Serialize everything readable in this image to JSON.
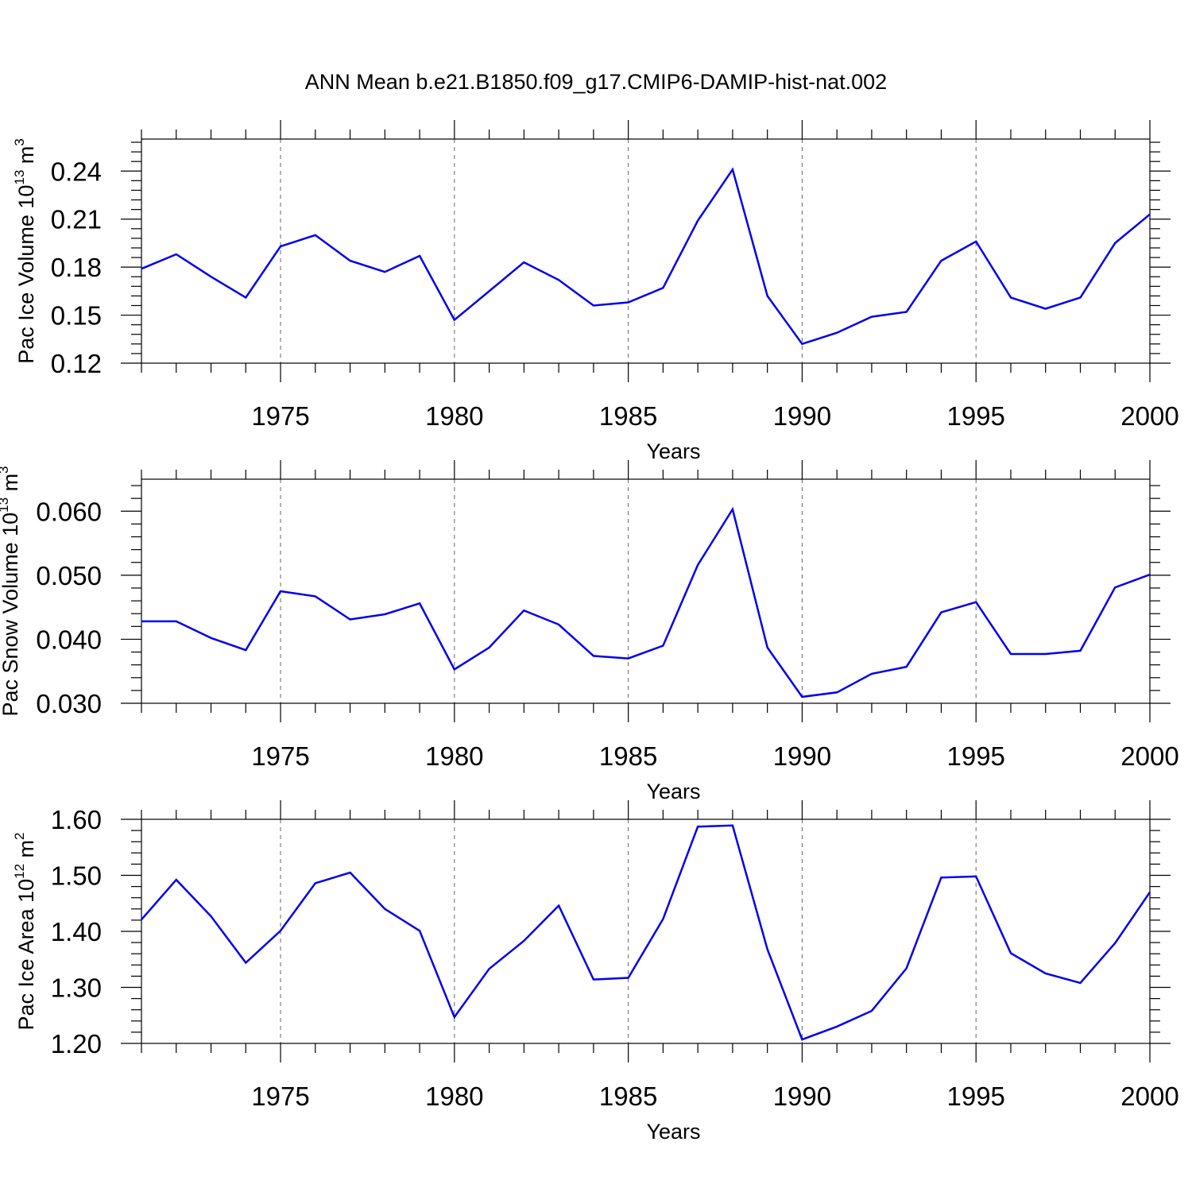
{
  "title": "ANN Mean b.e21.B1850.f09_g17.CMIP6-DAMIP-hist-nat.002",
  "chart_data": [
    {
      "type": "line",
      "ylabel": "Pac Ice Volume 10",
      "ylabel_exp": "13",
      "ylabel_unit": " m",
      "ylabel_unit_exp": "3",
      "xlabel": "Years",
      "xlim": [
        1971,
        2000
      ],
      "ylim": [
        0.12,
        0.26
      ],
      "xticks": [
        1975,
        1980,
        1985,
        1990,
        1995,
        2000
      ],
      "xtick_labels": [
        "1975",
        "1980",
        "1985",
        "1990",
        "1995",
        "2000"
      ],
      "yticks": [
        0.12,
        0.15,
        0.18,
        0.21,
        0.24
      ],
      "ytick_labels": [
        "0.12",
        "0.15",
        "0.18",
        "0.21",
        "0.24"
      ],
      "grid": "vertical dashed at major x ticks",
      "color": "#0000ee",
      "x": [
        1971,
        1972,
        1973,
        1974,
        1975,
        1976,
        1977,
        1978,
        1979,
        1980,
        1981,
        1982,
        1983,
        1984,
        1985,
        1986,
        1987,
        1988,
        1989,
        1990,
        1991,
        1992,
        1993,
        1994,
        1995,
        1996,
        1997,
        1998,
        1999,
        2000
      ],
      "values": [
        0.179,
        0.188,
        0.174,
        0.161,
        0.193,
        0.2,
        0.184,
        0.177,
        0.187,
        0.147,
        0.165,
        0.183,
        0.172,
        0.156,
        0.158,
        0.167,
        0.209,
        0.241,
        0.162,
        0.132,
        0.139,
        0.149,
        0.152,
        0.184,
        0.196,
        0.161,
        0.154,
        0.161,
        0.195,
        0.213
      ]
    },
    {
      "type": "line",
      "ylabel": "Pac Snow Volume 10",
      "ylabel_exp": "13",
      "ylabel_unit": " m",
      "ylabel_unit_exp": "3",
      "xlabel": "Years",
      "xlim": [
        1971,
        2000
      ],
      "ylim": [
        0.03,
        0.065
      ],
      "xticks": [
        1975,
        1980,
        1985,
        1990,
        1995,
        2000
      ],
      "xtick_labels": [
        "1975",
        "1980",
        "1985",
        "1990",
        "1995",
        "2000"
      ],
      "yticks": [
        0.03,
        0.04,
        0.05,
        0.06
      ],
      "ytick_labels": [
        "0.030",
        "0.040",
        "0.050",
        "0.060"
      ],
      "grid": "vertical dashed at major x ticks",
      "color": "#0000ee",
      "x": [
        1971,
        1972,
        1973,
        1974,
        1975,
        1976,
        1977,
        1978,
        1979,
        1980,
        1981,
        1982,
        1983,
        1984,
        1985,
        1986,
        1987,
        1988,
        1989,
        1990,
        1991,
        1992,
        1993,
        1994,
        1995,
        1996,
        1997,
        1998,
        1999,
        2000
      ],
      "values": [
        0.0428,
        0.0428,
        0.0402,
        0.0383,
        0.0475,
        0.0467,
        0.0431,
        0.0439,
        0.0456,
        0.0353,
        0.0387,
        0.0445,
        0.0423,
        0.0374,
        0.037,
        0.039,
        0.0516,
        0.0603,
        0.0387,
        0.031,
        0.0317,
        0.0346,
        0.0357,
        0.0442,
        0.0458,
        0.0377,
        0.0377,
        0.0382,
        0.0481,
        0.0501
      ]
    },
    {
      "type": "line",
      "ylabel": "Pac Ice Area 10",
      "ylabel_exp": "12",
      "ylabel_unit": " m",
      "ylabel_unit_exp": "2",
      "xlabel": "Years",
      "xlim": [
        1971,
        2000
      ],
      "ylim": [
        1.2,
        1.6
      ],
      "xticks": [
        1975,
        1980,
        1985,
        1990,
        1995,
        2000
      ],
      "xtick_labels": [
        "1975",
        "1980",
        "1985",
        "1990",
        "1995",
        "2000"
      ],
      "yticks": [
        1.2,
        1.3,
        1.4,
        1.5,
        1.6
      ],
      "ytick_labels": [
        "1.20",
        "1.30",
        "1.40",
        "1.50",
        "1.60"
      ],
      "grid": "vertical dashed at major x ticks",
      "color": "#0000ee",
      "x": [
        1971,
        1972,
        1973,
        1974,
        1975,
        1976,
        1977,
        1978,
        1979,
        1980,
        1981,
        1982,
        1983,
        1984,
        1985,
        1986,
        1987,
        1988,
        1989,
        1990,
        1991,
        1992,
        1993,
        1994,
        1995,
        1996,
        1997,
        1998,
        1999,
        2000
      ],
      "values": [
        1.421,
        1.492,
        1.427,
        1.344,
        1.401,
        1.486,
        1.505,
        1.44,
        1.401,
        1.247,
        1.333,
        1.383,
        1.446,
        1.314,
        1.317,
        1.422,
        1.587,
        1.589,
        1.368,
        1.207,
        1.23,
        1.258,
        1.334,
        1.496,
        1.498,
        1.361,
        1.325,
        1.308,
        1.379,
        1.47
      ]
    }
  ]
}
